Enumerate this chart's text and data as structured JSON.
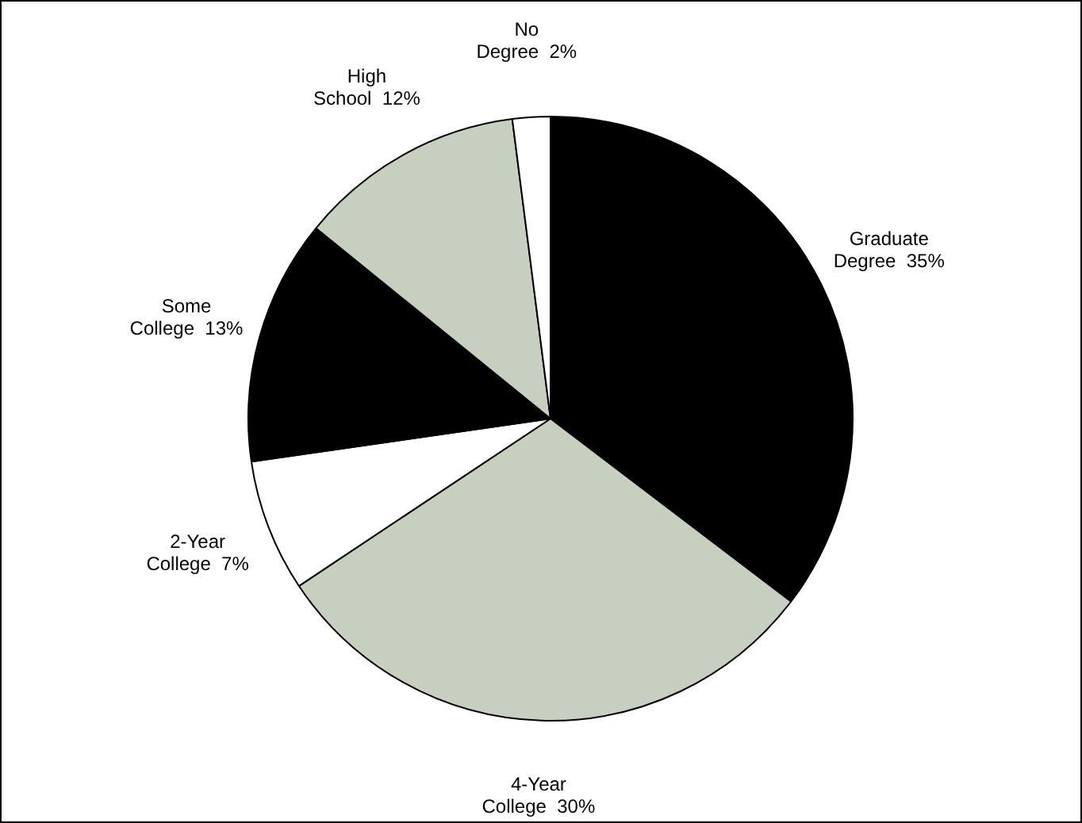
{
  "chart_data": {
    "type": "pie",
    "categories": [
      "Graduate Degree",
      "4-Year College",
      "2-Year College",
      "Some College",
      "High School",
      "No Degree"
    ],
    "values": [
      35,
      30,
      7,
      13,
      12,
      2
    ],
    "value_labels": [
      "35%",
      "30%",
      "7%",
      "13%",
      "12%",
      "2%"
    ],
    "colors": [
      "#000000",
      "#c6cfc0",
      "#ffffff",
      "#000000",
      "#c6cfc0",
      "#ffffff"
    ],
    "legend": false
  }
}
